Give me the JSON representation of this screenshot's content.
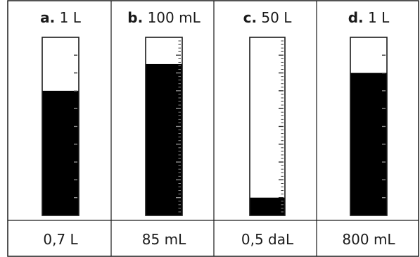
{
  "cylinders": [
    {
      "letter": "a.",
      "capacity": "1 L",
      "answer": "0,7 L",
      "fill_fraction": 0.7,
      "major_ticks": 10,
      "minor_per_major": 1
    },
    {
      "letter": "b.",
      "capacity": "100 mL",
      "answer": "85 mL",
      "fill_fraction": 0.85,
      "major_ticks": 10,
      "minor_per_major": 5
    },
    {
      "letter": "c.",
      "capacity": "50 L",
      "answer": "0,5 daL",
      "fill_fraction": 0.1,
      "major_ticks": 10,
      "minor_per_major": 5
    },
    {
      "letter": "d.",
      "capacity": "1 L",
      "answer": "800 mL",
      "fill_fraction": 0.8,
      "major_ticks": 10,
      "minor_per_major": 1
    }
  ],
  "colors": {
    "fill": "#000000",
    "border": "#1a1a1a",
    "background": "#ffffff"
  }
}
